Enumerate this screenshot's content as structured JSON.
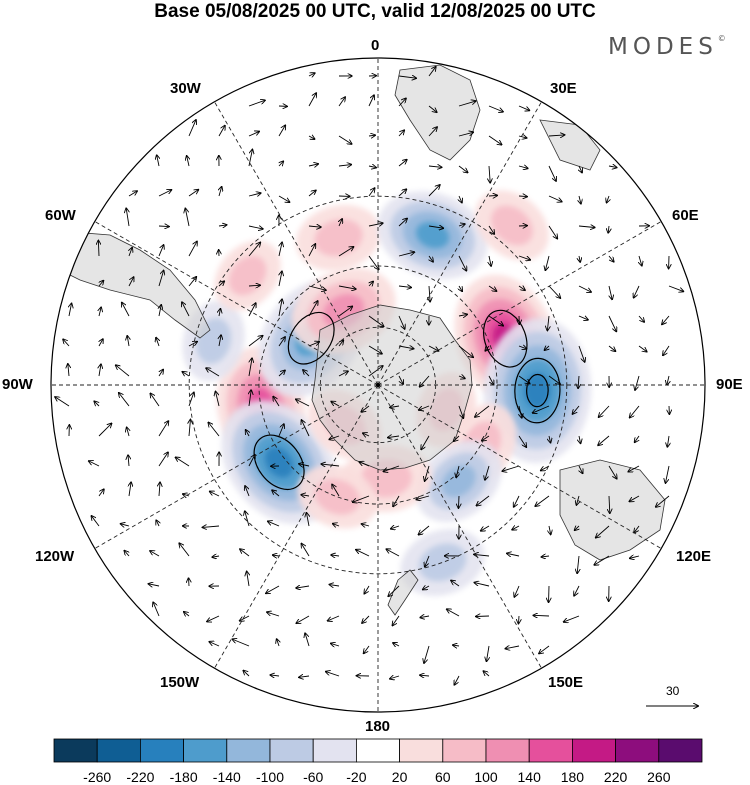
{
  "title": "Base 05/08/2025 00 UTC, valid 12/08/2025 00 UTC",
  "brand": {
    "name": "MODES",
    "mark": "©"
  },
  "longitude_labels": {
    "top": "0",
    "bottom": "180",
    "left": "90W",
    "right": "90E",
    "tl30": "30W",
    "tl60": "60W",
    "tr30": "30E",
    "tr60": "60E",
    "bl120": "120W",
    "bl150": "150W",
    "br120": "120E",
    "br150": "150E"
  },
  "vector_scale": {
    "value": "30"
  },
  "colorbar": {
    "ticks": [
      "-260",
      "-220",
      "-180",
      "-140",
      "-100",
      "-60",
      "-20",
      "20",
      "60",
      "100",
      "140",
      "180",
      "220",
      "260"
    ],
    "colors": [
      "#0b3a5c",
      "#0f5e94",
      "#2780bd",
      "#4e9ccc",
      "#93b7db",
      "#bdcbe4",
      "#e3e3f0",
      "#ffffff",
      "#f9dedd",
      "#f6bcc7",
      "#ef8fb2",
      "#e5509c",
      "#c41a85",
      "#8d0d7d",
      "#5a0c6e"
    ]
  },
  "map": {
    "type": "south-polar-stereographic",
    "field": "anomaly",
    "land_color": "#dcdcdc",
    "anomalies": [
      {
        "lon": 70,
        "lat": -45,
        "value": 160
      },
      {
        "lon": 92,
        "lat": -38,
        "value": -190
      },
      {
        "lon": -100,
        "lat": -50,
        "value": 130
      },
      {
        "lon": -128,
        "lat": -48,
        "value": -170
      },
      {
        "lon": -55,
        "lat": -62,
        "value": -150
      },
      {
        "lon": -25,
        "lat": -62,
        "value": 110
      },
      {
        "lon": -15,
        "lat": -40,
        "value": 60
      },
      {
        "lon": 20,
        "lat": -38,
        "value": -120
      },
      {
        "lon": 40,
        "lat": -25,
        "value": 50
      },
      {
        "lon": 120,
        "lat": -50,
        "value": 60
      },
      {
        "lon": 140,
        "lat": -48,
        "value": -80
      },
      {
        "lon": 175,
        "lat": -58,
        "value": 70
      },
      {
        "lon": -160,
        "lat": -50,
        "value": 50
      },
      {
        "lon": -140,
        "lat": -72,
        "value": 50
      },
      {
        "lon": 110,
        "lat": -65,
        "value": 40
      },
      {
        "lon": -75,
        "lat": -35,
        "value": -50
      },
      {
        "lon": -50,
        "lat": -35,
        "value": 40
      },
      {
        "lon": 160,
        "lat": -30,
        "value": -60
      }
    ]
  }
}
